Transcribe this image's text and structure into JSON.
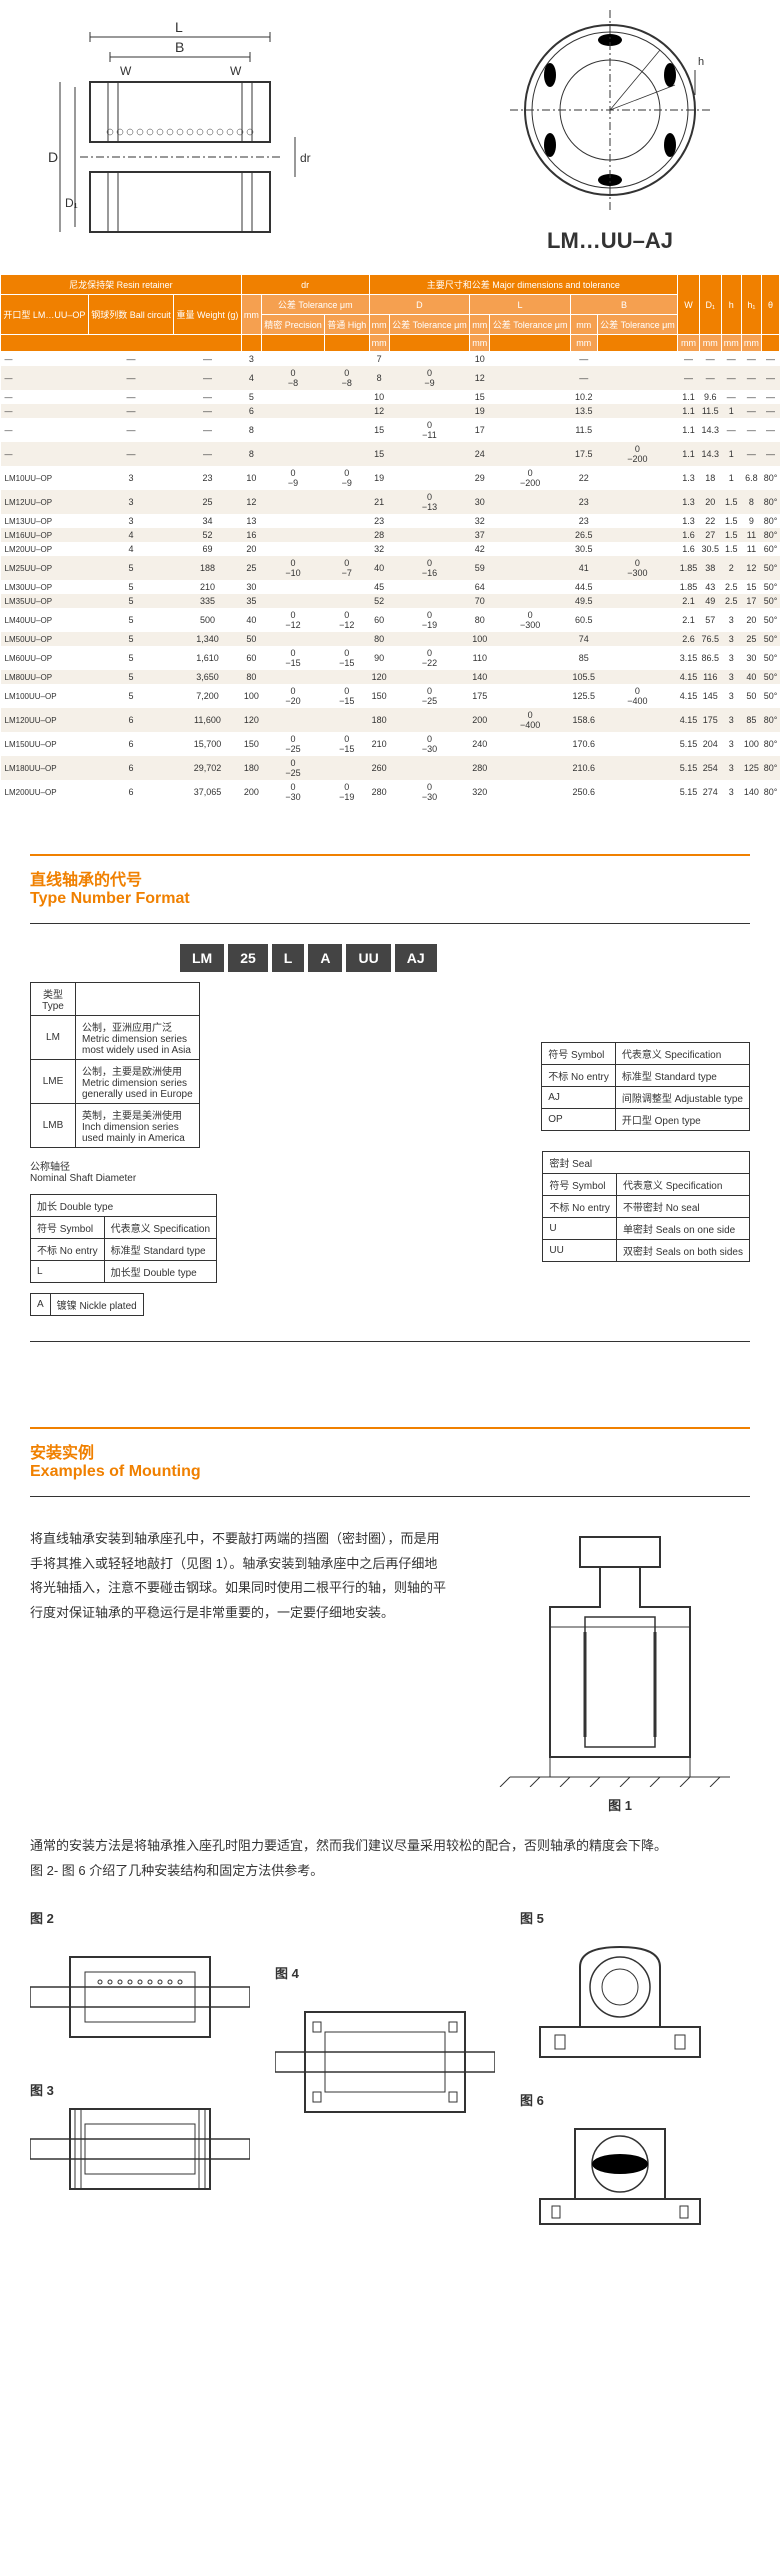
{
  "drawing": {
    "product_label": "LM…UU–AJ",
    "dims": {
      "L": "L",
      "B": "B",
      "W": "W",
      "D": "D",
      "D1": "D₁",
      "dr": "dr",
      "h": "h"
    }
  },
  "main_table": {
    "header_groups": {
      "retainer": "尼龙保持架   Resin retainer",
      "dr": "dr",
      "major": "主要尺寸和公差   Major dimensions and tolerance"
    },
    "header_cols": {
      "model": "开口型\nLM…UU–OP",
      "ball": "钢球列数\nBall\ncircuit",
      "weight": "重量\nWeight\n(g)",
      "dr_mm": "mm",
      "tol": "公差\nTolerance μm",
      "precision": "精密\nPrecision",
      "high": "普通\nHigh",
      "D": "D",
      "L": "L",
      "B": "B",
      "W": "W",
      "D1": "D₁",
      "h": "h",
      "h1": "h₁",
      "theta": "θ",
      "mm": "mm",
      "tol_um": "公差\nTolerance\nμm"
    },
    "rows": [
      {
        "model": "—",
        "ball": "—",
        "wt": "—",
        "dr": "3",
        "tp": "",
        "th": "",
        "D": "7",
        "Dt": "",
        "L": "10",
        "Lt": "",
        "B": "—",
        "Bt": "",
        "W": "—",
        "D1": "—",
        "h": "—",
        "h1": "—",
        "th2": "—"
      },
      {
        "model": "—",
        "ball": "—",
        "wt": "—",
        "dr": "4",
        "tp": "0\n−8",
        "th": "0\n−8",
        "D": "8",
        "Dt": "0\n−9",
        "L": "12",
        "Lt": "",
        "B": "—",
        "Bt": "",
        "W": "—",
        "D1": "—",
        "h": "—",
        "h1": "—",
        "th2": "—"
      },
      {
        "model": "—",
        "ball": "—",
        "wt": "—",
        "dr": "5",
        "tp": "",
        "th": "",
        "D": "10",
        "Dt": "",
        "L": "15",
        "Lt": "",
        "B": "10.2",
        "Bt": "",
        "W": "1.1",
        "D1": "9.6",
        "h": "—",
        "h1": "—",
        "th2": "—"
      },
      {
        "model": "—",
        "ball": "—",
        "wt": "—",
        "dr": "6",
        "tp": "",
        "th": "",
        "D": "12",
        "Dt": "",
        "L": "19",
        "Lt": "",
        "B": "13.5",
        "Bt": "",
        "W": "1.1",
        "D1": "11.5",
        "h": "1",
        "h1": "—",
        "th2": "—"
      },
      {
        "model": "—",
        "ball": "—",
        "wt": "—",
        "dr": "8",
        "tp": "",
        "th": "",
        "D": "15",
        "Dt": "0\n−11",
        "L": "17",
        "Lt": "",
        "B": "11.5",
        "Bt": "",
        "W": "1.1",
        "D1": "14.3",
        "h": "—",
        "h1": "—",
        "th2": "—"
      },
      {
        "model": "—",
        "ball": "—",
        "wt": "—",
        "dr": "8",
        "tp": "",
        "th": "",
        "D": "15",
        "Dt": "",
        "L": "24",
        "Lt": "",
        "B": "17.5",
        "Bt": "0\n−200",
        "W": "1.1",
        "D1": "14.3",
        "h": "1",
        "h1": "—",
        "th2": "—"
      },
      {
        "model": "LM10UU–OP",
        "ball": "3",
        "wt": "23",
        "dr": "10",
        "tp": "0\n−9",
        "th": "0\n−9",
        "D": "19",
        "Dt": "",
        "L": "29",
        "Lt": "0\n−200",
        "B": "22",
        "Bt": "",
        "W": "1.3",
        "D1": "18",
        "h": "1",
        "h1": "6.8",
        "th2": "80°"
      },
      {
        "model": "LM12UU–OP",
        "ball": "3",
        "wt": "25",
        "dr": "12",
        "tp": "",
        "th": "",
        "D": "21",
        "Dt": "0\n−13",
        "L": "30",
        "Lt": "",
        "B": "23",
        "Bt": "",
        "W": "1.3",
        "D1": "20",
        "h": "1.5",
        "h1": "8",
        "th2": "80°"
      },
      {
        "model": "LM13UU–OP",
        "ball": "3",
        "wt": "34",
        "dr": "13",
        "tp": "",
        "th": "",
        "D": "23",
        "Dt": "",
        "L": "32",
        "Lt": "",
        "B": "23",
        "Bt": "",
        "W": "1.3",
        "D1": "22",
        "h": "1.5",
        "h1": "9",
        "th2": "80°"
      },
      {
        "model": "LM16UU–OP",
        "ball": "4",
        "wt": "52",
        "dr": "16",
        "tp": "",
        "th": "",
        "D": "28",
        "Dt": "",
        "L": "37",
        "Lt": "",
        "B": "26.5",
        "Bt": "",
        "W": "1.6",
        "D1": "27",
        "h": "1.5",
        "h1": "11",
        "th2": "80°"
      },
      {
        "model": "LM20UU–OP",
        "ball": "4",
        "wt": "69",
        "dr": "20",
        "tp": "",
        "th": "",
        "D": "32",
        "Dt": "",
        "L": "42",
        "Lt": "",
        "B": "30.5",
        "Bt": "",
        "W": "1.6",
        "D1": "30.5",
        "h": "1.5",
        "h1": "11",
        "th2": "60°"
      },
      {
        "model": "LM25UU–OP",
        "ball": "5",
        "wt": "188",
        "dr": "25",
        "tp": "0\n−10",
        "th": "0\n−7",
        "D": "40",
        "Dt": "0\n−16",
        "L": "59",
        "Lt": "",
        "B": "41",
        "Bt": "0\n−300",
        "W": "1.85",
        "D1": "38",
        "h": "2",
        "h1": "12",
        "th2": "50°"
      },
      {
        "model": "LM30UU–OP",
        "ball": "5",
        "wt": "210",
        "dr": "30",
        "tp": "",
        "th": "",
        "D": "45",
        "Dt": "",
        "L": "64",
        "Lt": "",
        "B": "44.5",
        "Bt": "",
        "W": "1.85",
        "D1": "43",
        "h": "2.5",
        "h1": "15",
        "th2": "50°"
      },
      {
        "model": "LM35UU–OP",
        "ball": "5",
        "wt": "335",
        "dr": "35",
        "tp": "",
        "th": "",
        "D": "52",
        "Dt": "",
        "L": "70",
        "Lt": "",
        "B": "49.5",
        "Bt": "",
        "W": "2.1",
        "D1": "49",
        "h": "2.5",
        "h1": "17",
        "th2": "50°"
      },
      {
        "model": "LM40UU–OP",
        "ball": "5",
        "wt": "500",
        "dr": "40",
        "tp": "0\n−12",
        "th": "0\n−12",
        "D": "60",
        "Dt": "0\n−19",
        "L": "80",
        "Lt": "0\n−300",
        "B": "60.5",
        "Bt": "",
        "W": "2.1",
        "D1": "57",
        "h": "3",
        "h1": "20",
        "th2": "50°"
      },
      {
        "model": "LM50UU–OP",
        "ball": "5",
        "wt": "1,340",
        "dr": "50",
        "tp": "",
        "th": "",
        "D": "80",
        "Dt": "",
        "L": "100",
        "Lt": "",
        "B": "74",
        "Bt": "",
        "W": "2.6",
        "D1": "76.5",
        "h": "3",
        "h1": "25",
        "th2": "50°"
      },
      {
        "model": "LM60UU–OP",
        "ball": "5",
        "wt": "1,610",
        "dr": "60",
        "tp": "0\n−15",
        "th": "0\n−15",
        "D": "90",
        "Dt": "0\n−22",
        "L": "110",
        "Lt": "",
        "B": "85",
        "Bt": "",
        "W": "3.15",
        "D1": "86.5",
        "h": "3",
        "h1": "30",
        "th2": "50°"
      },
      {
        "model": "LM80UU–OP",
        "ball": "5",
        "wt": "3,650",
        "dr": "80",
        "tp": "",
        "th": "",
        "D": "120",
        "Dt": "",
        "L": "140",
        "Lt": "",
        "B": "105.5",
        "Bt": "",
        "W": "4.15",
        "D1": "116",
        "h": "3",
        "h1": "40",
        "th2": "50°"
      },
      {
        "model": "LM100UU–OP",
        "ball": "5",
        "wt": "7,200",
        "dr": "100",
        "tp": "0\n−20",
        "th": "0\n−15",
        "D": "150",
        "Dt": "0\n−25",
        "L": "175",
        "Lt": "",
        "B": "125.5",
        "Bt": "0\n−400",
        "W": "4.15",
        "D1": "145",
        "h": "3",
        "h1": "50",
        "th2": "50°"
      },
      {
        "model": "LM120UU–OP",
        "ball": "6",
        "wt": "11,600",
        "dr": "120",
        "tp": "",
        "th": "",
        "D": "180",
        "Dt": "",
        "L": "200",
        "Lt": "0\n−400",
        "B": "158.6",
        "Bt": "",
        "W": "4.15",
        "D1": "175",
        "h": "3",
        "h1": "85",
        "th2": "80°"
      },
      {
        "model": "LM150UU–OP",
        "ball": "6",
        "wt": "15,700",
        "dr": "150",
        "tp": "0\n−25",
        "th": "0\n−15",
        "D": "210",
        "Dt": "0\n−30",
        "L": "240",
        "Lt": "",
        "B": "170.6",
        "Bt": "",
        "W": "5.15",
        "D1": "204",
        "h": "3",
        "h1": "100",
        "th2": "80°"
      },
      {
        "model": "LM180UU–OP",
        "ball": "6",
        "wt": "29,702",
        "dr": "180",
        "tp": "0\n−25",
        "th": "",
        "D": "260",
        "Dt": "",
        "L": "280",
        "Lt": "",
        "B": "210.6",
        "Bt": "",
        "W": "5.15",
        "D1": "254",
        "h": "3",
        "h1": "125",
        "th2": "80°"
      },
      {
        "model": "LM200UU–OP",
        "ball": "6",
        "wt": "37,065",
        "dr": "200",
        "tp": "0\n−30",
        "th": "0\n−19",
        "D": "280",
        "Dt": "0\n−30",
        "L": "320",
        "Lt": "",
        "B": "250.6",
        "Bt": "",
        "W": "5.15",
        "D1": "274",
        "h": "3",
        "h1": "140",
        "th2": "80°"
      }
    ]
  },
  "type_format": {
    "title_cn": "直线轴承的代号",
    "title_en": "Type Number Format",
    "boxes": [
      "LM",
      "25",
      "L",
      "A",
      "UU",
      "AJ"
    ],
    "type_header": "类型\nType",
    "types": [
      {
        "code": "LM",
        "cn": "公制，亚洲应用广泛",
        "en": "Metric dimension series\nmost widely used in Asia"
      },
      {
        "code": "LME",
        "cn": "公制，主要是欧洲使用",
        "en": "Metric dimension series\ngenerally used in Europe"
      },
      {
        "code": "LMB",
        "cn": "英制，主要是美洲使用",
        "en": "Inch dimension series\nused mainly in America"
      }
    ],
    "nominal_cn": "公称轴径",
    "nominal_en": "Nominal Shaft Diameter",
    "double_header": "加长 Double type",
    "double": [
      {
        "col1": "符号 Symbol",
        "col2": "代表意义 Specification"
      },
      {
        "col1": "不标 No entry",
        "col2": "标准型 Standard type"
      },
      {
        "col1": "L",
        "col2": "加长型 Double type"
      }
    ],
    "nickel": {
      "code": "A",
      "desc": "镀镍 Nickle plated"
    },
    "right1_header": [
      "符号 Symbol",
      "代表意义 Specification"
    ],
    "right1": [
      {
        "col1": "不标 No entry",
        "col2": "标准型 Standard type"
      },
      {
        "col1": "AJ",
        "col2": "间隙调整型 Adjustable type"
      },
      {
        "col1": "OP",
        "col2": "开口型 Open type"
      }
    ],
    "right2_header": "密封 Seal",
    "right2_cols": [
      "符号 Symbol",
      "代表意义 Specification"
    ],
    "right2": [
      {
        "col1": "不标 No entry",
        "col2": "不带密封 No seal"
      },
      {
        "col1": "U",
        "col2": "单密封 Seals on one side"
      },
      {
        "col1": "UU",
        "col2": "双密封 Seals on both sides"
      }
    ]
  },
  "mounting": {
    "title_cn": "安装实例",
    "title_en": "Examples of Mounting",
    "para1": "将直线轴承安装到轴承座孔中，不要敲打两端的挡圈（密封圈），而是用手将其推入或轻轻地敲打（见图 1）。轴承安装到轴承座中之后再仔细地将光轴插入，注意不要碰击钢球。如果同时使用二根平行的轴，则轴的平行度对保证轴承的平稳运行是非常重要的，一定要仔细地安装。",
    "para2": "通常的安装方法是将轴承推入座孔时阻力要适宜，然而我们建议尽量采用较松的配合，否则轴承的精度会下降。",
    "para3": "图 2- 图 6 介绍了几种安装结构和固定方法供参考。",
    "fig_labels": {
      "f1": "图 1",
      "f2": "图 2",
      "f3": "图 3",
      "f4": "图 4",
      "f5": "图 5",
      "f6": "图 6"
    }
  }
}
